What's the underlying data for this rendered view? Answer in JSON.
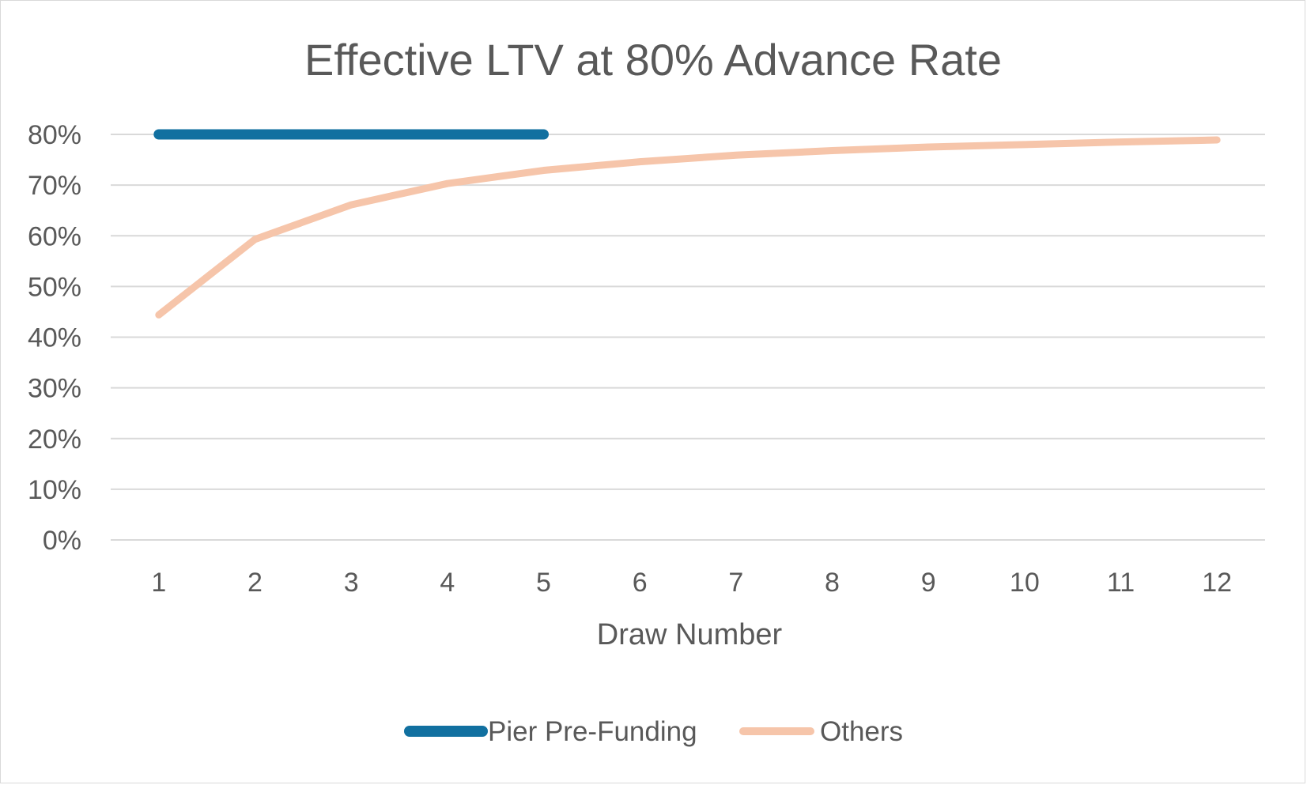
{
  "chart_data": {
    "type": "line",
    "title": "Effective LTV at 80% Advance Rate",
    "xlabel": "Draw Number",
    "ylabel": "",
    "x": [
      1,
      2,
      3,
      4,
      5,
      6,
      7,
      8,
      9,
      10,
      11,
      12
    ],
    "ylim": [
      0,
      80
    ],
    "yticks": [
      "0%",
      "10%",
      "20%",
      "30%",
      "40%",
      "50%",
      "60%",
      "70%",
      "80%"
    ],
    "grid": true,
    "legend_position": "bottom",
    "series": [
      {
        "name": "Pier Pre-Funding",
        "color": "#1170a0",
        "x": [
          1,
          2,
          3,
          4,
          5
        ],
        "values": [
          80,
          80,
          80,
          80,
          80
        ]
      },
      {
        "name": "Others",
        "color": "#f6c5aa",
        "x": [
          1,
          2,
          3,
          4,
          5,
          6,
          7,
          8,
          9,
          10,
          11,
          12
        ],
        "values": [
          44.4,
          59.3,
          66.1,
          70.3,
          72.9,
          74.6,
          75.9,
          76.8,
          77.5,
          78.0,
          78.5,
          78.9
        ]
      }
    ]
  }
}
